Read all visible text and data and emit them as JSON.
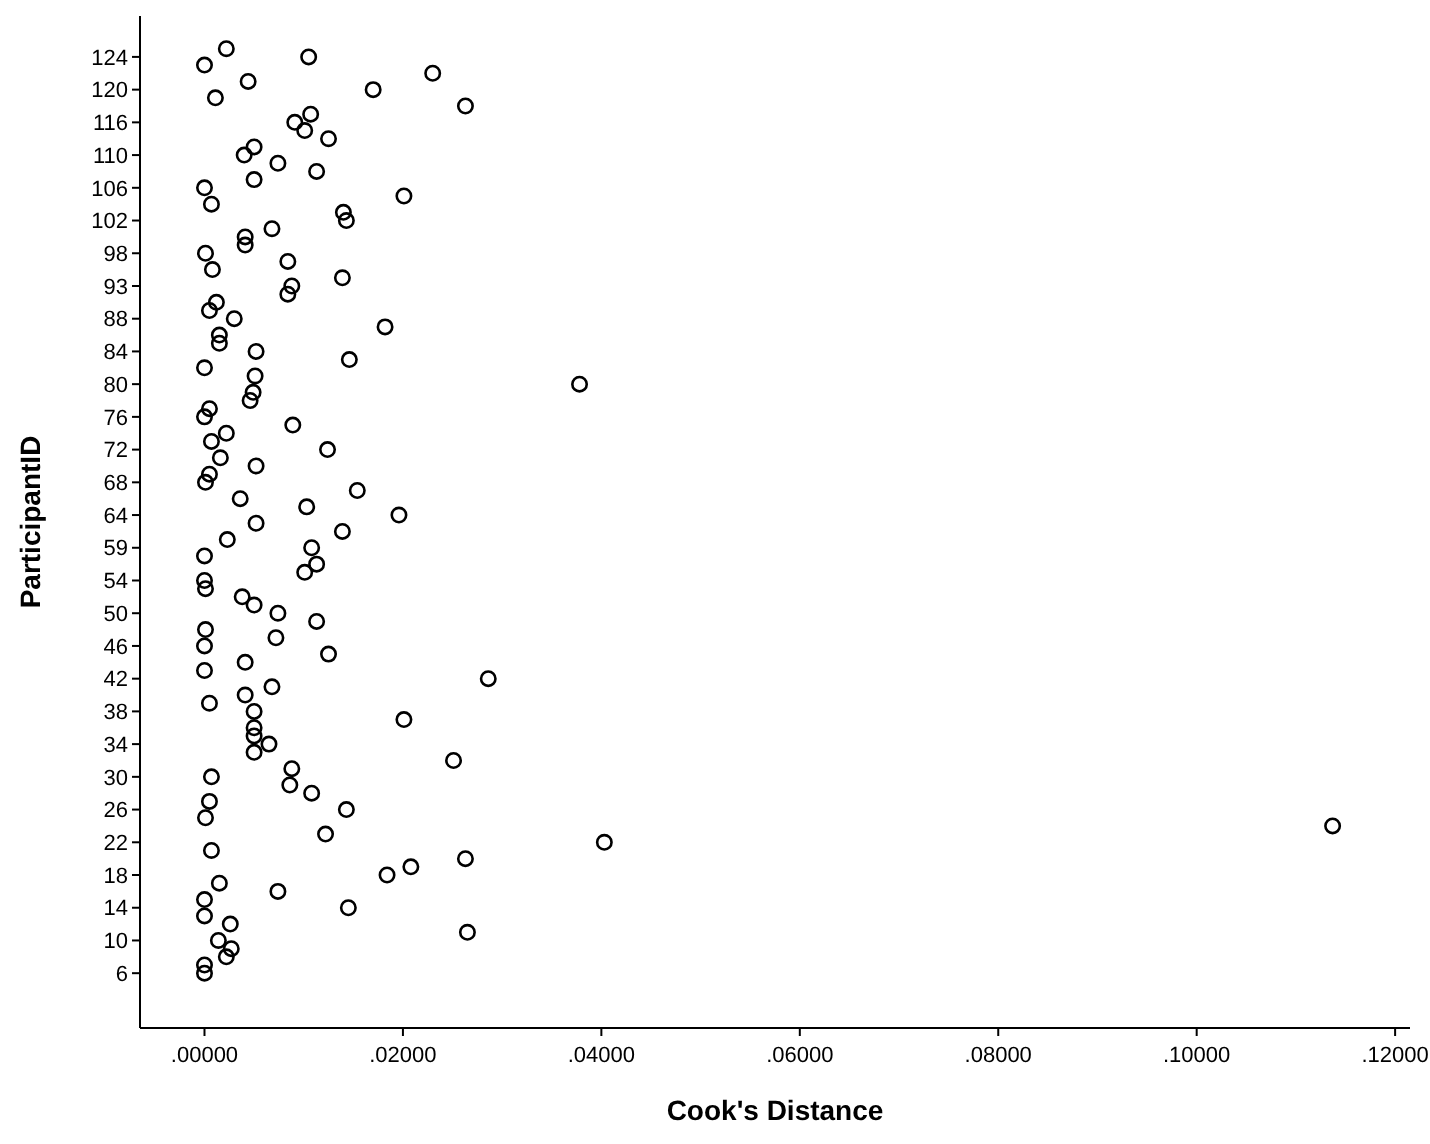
{
  "chart_data": {
    "type": "scatter",
    "orientation": "horizontal",
    "xlabel": "Cook's Distance",
    "ylabel": "ParticipantID",
    "marker": "circle",
    "color": "#000000",
    "categories": [
      null,
      "124",
      null,
      null,
      null,
      "120",
      null,
      null,
      null,
      "116",
      null,
      null,
      null,
      "110",
      null,
      null,
      null,
      "106",
      null,
      null,
      null,
      "102",
      null,
      null,
      null,
      "98",
      null,
      null,
      null,
      "93",
      null,
      null,
      null,
      "88",
      null,
      null,
      null,
      "84",
      null,
      null,
      null,
      "80",
      null,
      null,
      null,
      "76",
      null,
      null,
      null,
      "72",
      null,
      null,
      null,
      "68",
      null,
      null,
      null,
      "64",
      null,
      null,
      null,
      "59",
      null,
      null,
      null,
      "54",
      null,
      null,
      null,
      "50",
      null,
      null,
      null,
      "46",
      null,
      null,
      null,
      "42",
      null,
      null,
      null,
      "38",
      null,
      null,
      null,
      "34",
      null,
      null,
      null,
      "30",
      null,
      null,
      null,
      "26",
      null,
      null,
      null,
      "22",
      null,
      null,
      null,
      "18",
      null,
      null,
      null,
      "14",
      null,
      null,
      null,
      "10",
      null,
      null,
      null,
      "6"
    ],
    "values": [
      0.0022,
      0.0105,
      0,
      0.023,
      0.0044,
      0.017,
      0.0011,
      0.0263,
      0.0107,
      0.0091,
      0.0101,
      0.0125,
      0.005,
      0.004,
      0.0074,
      0.0113,
      0.005,
      0,
      0.0201,
      0.0007,
      0.014,
      0.0143,
      0.0068,
      0.0041,
      0.0041,
      0.0001,
      0.0084,
      0.0008,
      0.0139,
      0.0088,
      0.0084,
      0.0012,
      0.0005,
      0.003,
      0.0182,
      0.0015,
      0.0015,
      0.0052,
      0.0146,
      0,
      0.0051,
      0.0378,
      0.0049,
      0.0046,
      0.0005,
      0,
      0.0089,
      0.0022,
      0.0007,
      0.0124,
      0.0016,
      0.0052,
      0.0005,
      0.0001,
      0.0154,
      0.0036,
      0.0103,
      0.0196,
      0.0052,
      0.0139,
      0.0023,
      0.0108,
      0,
      0.0113,
      0.0101,
      0,
      0.0001,
      0.0038,
      0.005,
      0.0074,
      0.0113,
      0.0001,
      0.0072,
      0,
      0.0125,
      0.0041,
      0,
      0.0286,
      0.0068,
      0.0041,
      0.0005,
      0.005,
      0.0201,
      0.005,
      0.005,
      0.0065,
      0.005,
      0.0251,
      0.0088,
      0.0007,
      0.0086,
      0.0108,
      0.0005,
      0.0143,
      0.0001,
      0.1137,
      0.0122,
      0.0403,
      0.0007,
      0.0263,
      0.0208,
      0.0184,
      0.0015,
      0.0074,
      0,
      0.0145,
      0,
      0.0026,
      0.0265,
      0.0014,
      0.0027,
      0.0022,
      0,
      0
    ],
    "xlim": [
      -0.0065,
      0.1215
    ],
    "xticks": [
      {
        "value": 0,
        "label": ".00000"
      },
      {
        "value": 0.02,
        "label": ".02000"
      },
      {
        "value": 0.04,
        "label": ".04000"
      },
      {
        "value": 0.06,
        "label": ".06000"
      },
      {
        "value": 0.08,
        "label": ".08000"
      },
      {
        "value": 0.1,
        "label": ".10000"
      },
      {
        "value": 0.12,
        "label": ".12000"
      }
    ]
  }
}
